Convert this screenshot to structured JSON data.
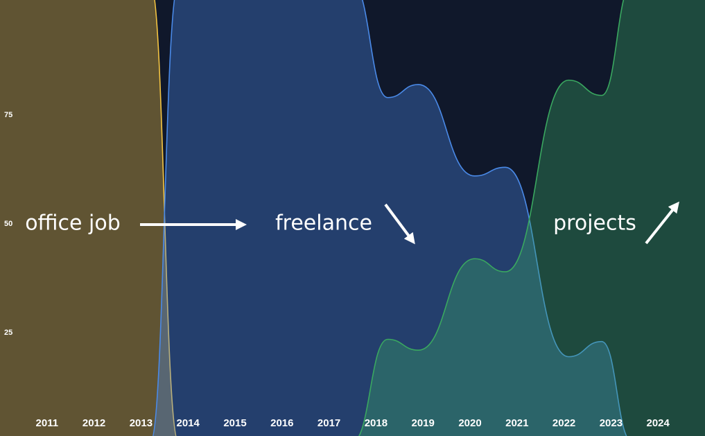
{
  "chart_data": {
    "type": "area",
    "xlim": [
      2010,
      2025
    ],
    "xticks": [
      2011,
      2012,
      2013,
      2014,
      2015,
      2016,
      2017,
      2018,
      2019,
      2020,
      2021,
      2022,
      2023,
      2024
    ],
    "ylim": [
      1.3,
      101.4
    ],
    "yticks": [
      25,
      50,
      75
    ],
    "grid": false,
    "series": [
      {
        "name": "office job",
        "color": "#f5c542",
        "x": [
          2010,
          2013.2,
          2013.8
        ],
        "values": [
          105,
          105,
          0
        ]
      },
      {
        "name": "freelance",
        "color": "#4a8ae8",
        "x": [
          2013.2,
          2013.8,
          2017.5,
          2018.25,
          2018.9,
          2020.1,
          2020.75,
          2022.1,
          2022.8,
          2023.45
        ],
        "values": [
          0,
          105,
          105,
          79,
          82,
          61,
          63,
          19.5,
          23,
          0
        ]
      },
      {
        "name": "projects",
        "color": "#3aa860",
        "x": [
          2017.5,
          2018.25,
          2018.9,
          2020.1,
          2020.75,
          2022.1,
          2022.8,
          2023.45,
          2025
        ],
        "values": [
          0,
          23.5,
          21,
          42,
          39,
          83,
          79.5,
          105,
          105
        ]
      }
    ]
  }
}
